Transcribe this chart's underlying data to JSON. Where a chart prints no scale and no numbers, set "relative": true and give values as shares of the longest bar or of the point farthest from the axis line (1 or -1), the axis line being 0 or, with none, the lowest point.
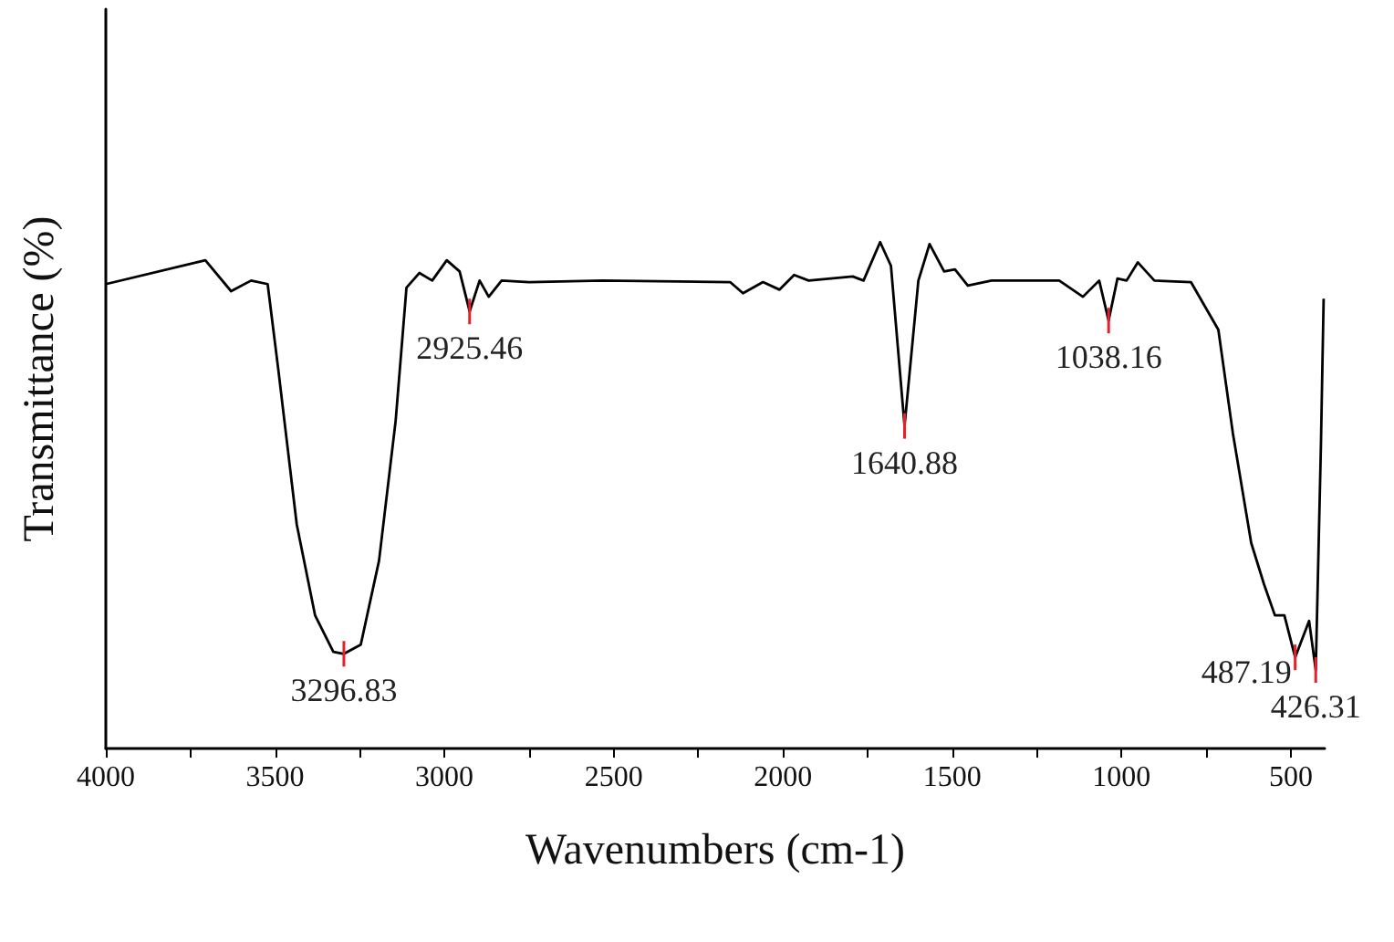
{
  "chart_data": {
    "type": "line",
    "relative": true,
    "xlabel": "Wavenumbers (cm-1)",
    "ylabel": "Transmittance (%)",
    "xlim": [
      4000,
      400
    ],
    "xticks": [
      4000,
      {
        "value": 3750,
        "label": null
      },
      3500,
      {
        "value": 3250,
        "label": null
      },
      3000,
      {
        "value": 2750,
        "label": null
      },
      2500,
      {
        "value": 2250,
        "label": null
      },
      2000,
      {
        "value": 1750,
        "label": null
      },
      1500,
      {
        "value": 1250,
        "label": null
      },
      1000,
      {
        "value": 750,
        "label": null
      },
      500
    ],
    "grid": false,
    "marker": "none",
    "line_style": "solid",
    "series": [
      {
        "color": "#000000",
        "x": [
          4000,
          3706,
          3630,
          3571,
          3522,
          3490,
          3436,
          3382,
          3328,
          3296.83,
          3247,
          3193,
          3144,
          3112,
          3074,
          3036,
          2993,
          2955,
          2925.46,
          2896,
          2869,
          2831,
          2750,
          2533,
          2156,
          2118,
          2059,
          2010,
          1967,
          1924,
          1794,
          1762,
          1713,
          1681,
          1640.88,
          1600,
          1567,
          1524,
          1492,
          1454,
          1384,
          1184,
          1114,
          1066,
          1038.16,
          1012,
          985,
          952,
          903,
          795,
          752,
          714,
          671,
          617,
          579,
          547,
          519,
          487.19,
          446,
          426.31,
          411,
          403
        ],
        "values": [
          0.917,
          0.964,
          0.903,
          0.924,
          0.917,
          0.745,
          0.442,
          0.263,
          0.191,
          0.187,
          0.205,
          0.371,
          0.647,
          0.91,
          0.939,
          0.924,
          0.964,
          0.942,
          0.863,
          0.924,
          0.892,
          0.924,
          0.921,
          0.924,
          0.921,
          0.899,
          0.921,
          0.906,
          0.935,
          0.924,
          0.932,
          0.924,
          1.0,
          0.953,
          0.637,
          0.924,
          0.996,
          0.942,
          0.946,
          0.914,
          0.924,
          0.924,
          0.892,
          0.924,
          0.845,
          0.928,
          0.924,
          0.96,
          0.924,
          0.921,
          0.871,
          0.827,
          0.622,
          0.406,
          0.324,
          0.263,
          0.263,
          0.18,
          0.252,
          0.155,
          0.6,
          0.888
        ]
      }
    ],
    "annotations": [
      {
        "text": "3296.83",
        "x": 3296.83,
        "y": 0.187
      },
      {
        "text": "2925.46",
        "x": 2925.46,
        "y": 0.863
      },
      {
        "text": "1640.88",
        "x": 1640.88,
        "y": 0.637
      },
      {
        "text": "1038.16",
        "x": 1038.16,
        "y": 0.845
      },
      {
        "text": "487.19",
        "x": 487.19,
        "y": 0.18
      },
      {
        "text": "426.31",
        "x": 426.31,
        "y": 0.155
      }
    ]
  }
}
